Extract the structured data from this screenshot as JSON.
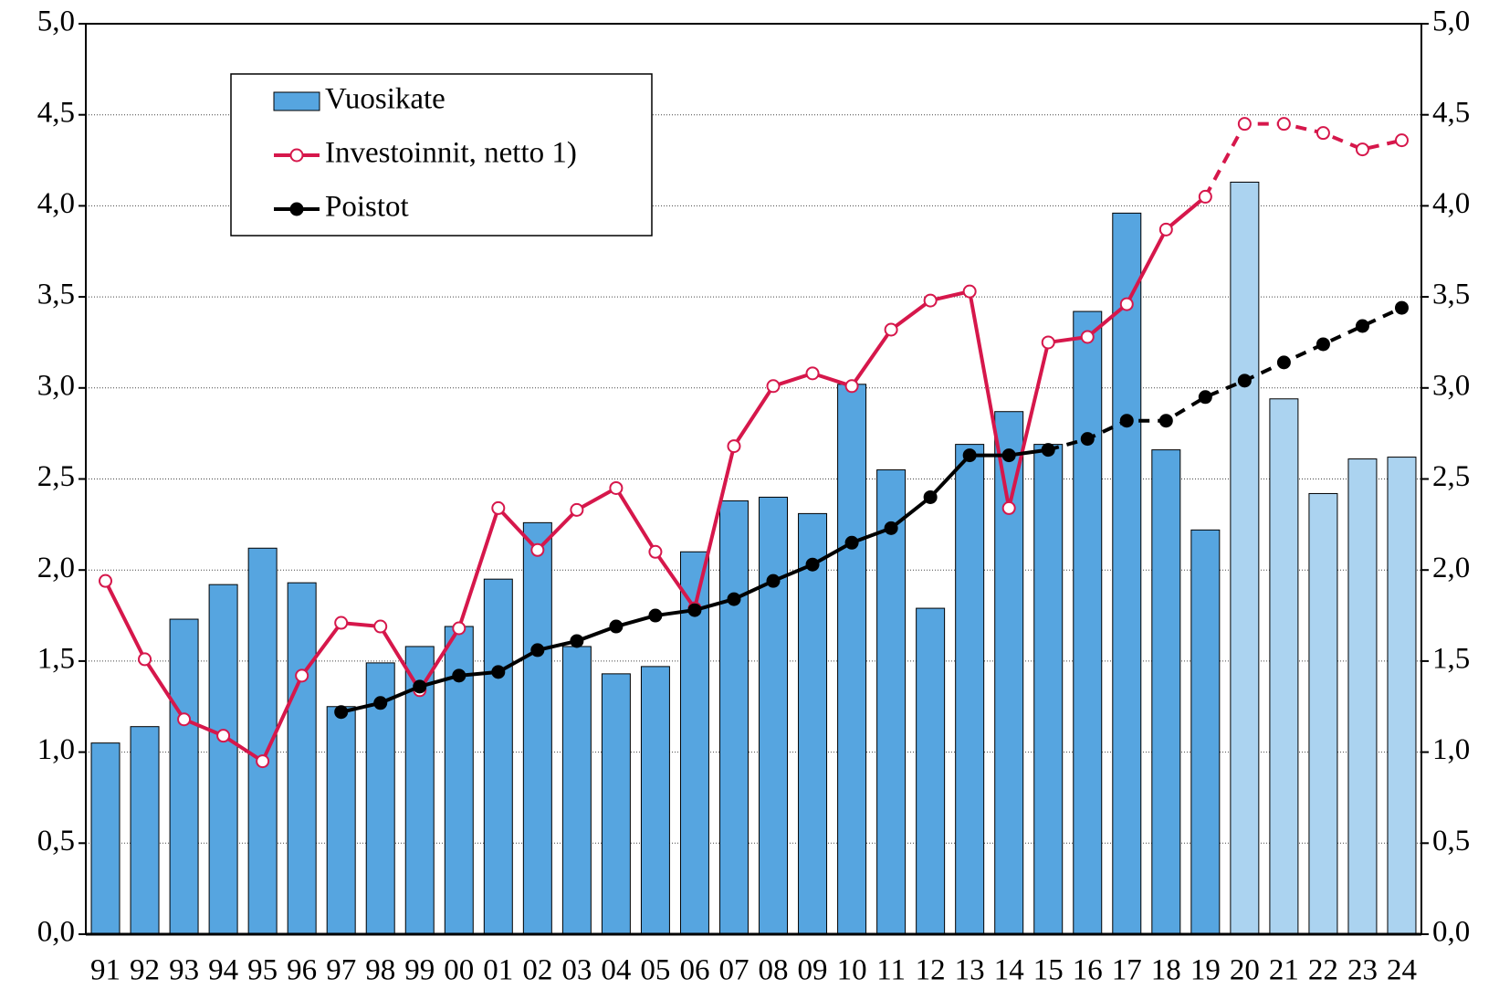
{
  "chart_data": {
    "type": "bar-line",
    "categories": [
      "91",
      "92",
      "93",
      "94",
      "95",
      "96",
      "97",
      "98",
      "99",
      "00",
      "01",
      "02",
      "03",
      "04",
      "05",
      "06",
      "07",
      "08",
      "09",
      "10",
      "11",
      "12",
      "13",
      "14",
      "15",
      "16",
      "17",
      "18",
      "19",
      "20",
      "21",
      "22",
      "23",
      "24"
    ],
    "series": [
      {
        "name": "Vuosikate",
        "type": "bar",
        "color": "#56a5e0",
        "light_color": "#abd3f0",
        "light_from": "20",
        "values": [
          1.05,
          1.14,
          1.73,
          1.92,
          2.12,
          1.93,
          1.25,
          1.49,
          1.58,
          1.69,
          1.95,
          2.26,
          1.58,
          1.43,
          1.47,
          2.1,
          2.38,
          2.4,
          2.31,
          3.02,
          2.55,
          1.79,
          2.69,
          2.87,
          2.69,
          3.42,
          3.96,
          2.66,
          2.22,
          4.13,
          2.94,
          2.42,
          2.61,
          2.62
        ]
      },
      {
        "name": "Investoinnit, netto 1)",
        "type": "line",
        "color": "#d6174b",
        "marker": "open",
        "dashed_from": "19",
        "values": [
          1.94,
          1.51,
          1.18,
          1.09,
          0.95,
          1.42,
          1.71,
          1.69,
          1.34,
          1.68,
          2.34,
          2.11,
          2.33,
          2.45,
          2.1,
          1.79,
          2.68,
          3.01,
          3.08,
          3.01,
          3.32,
          3.48,
          3.53,
          2.34,
          3.25,
          3.28,
          3.46,
          3.87,
          4.05,
          4.45,
          4.45,
          4.4,
          4.31,
          4.36
        ]
      },
      {
        "name": "Poistot",
        "type": "line",
        "color": "#000000",
        "marker": "filled",
        "dashed_from": "15",
        "values": [
          null,
          null,
          null,
          null,
          null,
          null,
          1.22,
          1.27,
          1.36,
          1.42,
          1.44,
          1.56,
          1.61,
          1.69,
          1.75,
          1.78,
          1.84,
          1.94,
          2.03,
          2.15,
          2.23,
          2.4,
          2.63,
          2.63,
          2.66,
          2.72,
          2.82,
          2.82,
          2.95,
          3.04,
          3.14,
          3.24,
          3.34,
          3.44
        ]
      }
    ],
    "ylim": [
      0,
      5
    ],
    "yticks": [
      {
        "value": 0,
        "label": "0,0"
      },
      {
        "value": 0.5,
        "label": "0,5"
      },
      {
        "value": 1,
        "label": "1,0"
      },
      {
        "value": 1.5,
        "label": "1,5"
      },
      {
        "value": 2,
        "label": "2,0"
      },
      {
        "value": 2.5,
        "label": "2,5"
      },
      {
        "value": 3,
        "label": "3,0"
      },
      {
        "value": 3.5,
        "label": "3,5"
      },
      {
        "value": 4,
        "label": "4,0"
      },
      {
        "value": 4.5,
        "label": "4,5"
      },
      {
        "value": 5,
        "label": "5,0"
      }
    ],
    "grid": true,
    "legend": "top-left"
  }
}
